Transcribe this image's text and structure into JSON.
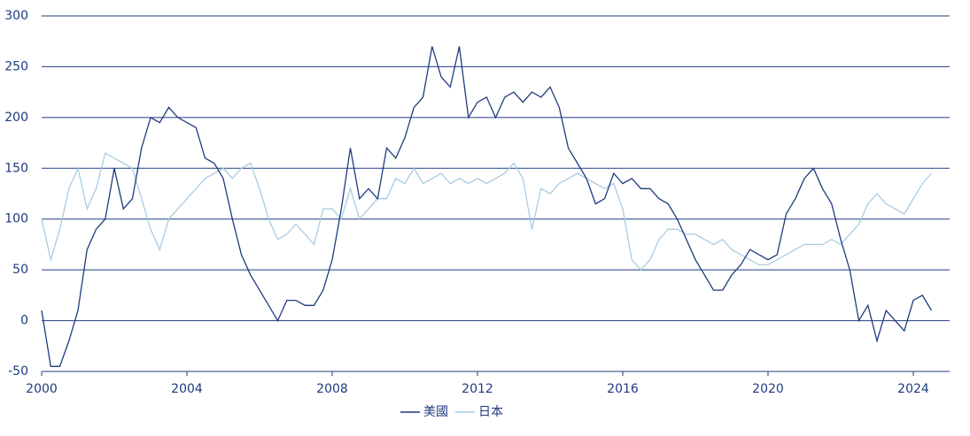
{
  "chart_data": {
    "type": "line",
    "x": [
      2000,
      2000.25,
      2000.5,
      2000.75,
      2001,
      2001.25,
      2001.5,
      2001.75,
      2002,
      2002.25,
      2002.5,
      2002.75,
      2003,
      2003.25,
      2003.5,
      2003.75,
      2004,
      2004.25,
      2004.5,
      2004.75,
      2005,
      2005.25,
      2005.5,
      2005.75,
      2006,
      2006.25,
      2006.5,
      2006.75,
      2007,
      2007.25,
      2007.5,
      2007.75,
      2008,
      2008.25,
      2008.5,
      2008.75,
      2009,
      2009.25,
      2009.5,
      2009.75,
      2010,
      2010.25,
      2010.5,
      2010.75,
      2011,
      2011.25,
      2011.5,
      2011.75,
      2012,
      2012.25,
      2012.5,
      2012.75,
      2013,
      2013.25,
      2013.5,
      2013.75,
      2014,
      2014.25,
      2014.5,
      2014.75,
      2015,
      2015.25,
      2015.5,
      2015.75,
      2016,
      2016.25,
      2016.5,
      2016.75,
      2017,
      2017.25,
      2017.5,
      2017.75,
      2018,
      2018.25,
      2018.5,
      2018.75,
      2019,
      2019.25,
      2019.5,
      2019.75,
      2020,
      2020.25,
      2020.5,
      2020.75,
      2021,
      2021.25,
      2021.5,
      2021.75,
      2022,
      2022.25,
      2022.5,
      2022.75,
      2023,
      2023.25,
      2023.5,
      2023.75,
      2024,
      2024.25,
      2024.5
    ],
    "series": [
      {
        "name": "美國",
        "color": "#1f3b7f",
        "values": [
          10,
          -45,
          -45,
          -20,
          10,
          70,
          90,
          100,
          150,
          110,
          120,
          170,
          200,
          195,
          210,
          200,
          195,
          190,
          160,
          155,
          140,
          100,
          65,
          45,
          30,
          15,
          0,
          20,
          20,
          15,
          15,
          30,
          60,
          110,
          170,
          120,
          130,
          120,
          170,
          160,
          180,
          210,
          220,
          270,
          240,
          230,
          270,
          200,
          215,
          220,
          200,
          220,
          225,
          215,
          225,
          220,
          230,
          210,
          170,
          155,
          140,
          115,
          120,
          145,
          135,
          140,
          130,
          130,
          120,
          115,
          100,
          80,
          60,
          45,
          30,
          30,
          45,
          55,
          70,
          65,
          60,
          65,
          105,
          120,
          140,
          150,
          130,
          115,
          80,
          50,
          0,
          15,
          -20,
          10,
          0,
          -10,
          20,
          25,
          10
        ]
      },
      {
        "name": "日本",
        "color": "#a9cce3",
        "values": [
          100,
          60,
          90,
          130,
          150,
          110,
          130,
          165,
          160,
          155,
          150,
          120,
          90,
          70,
          100,
          110,
          120,
          130,
          140,
          145,
          150,
          140,
          150,
          155,
          130,
          100,
          80,
          85,
          95,
          85,
          75,
          110,
          110,
          100,
          130,
          100,
          110,
          120,
          120,
          140,
          135,
          150,
          135,
          140,
          145,
          135,
          140,
          135,
          140,
          135,
          140,
          145,
          155,
          140,
          90,
          130,
          125,
          135,
          140,
          145,
          140,
          135,
          130,
          135,
          110,
          60,
          50,
          60,
          80,
          90,
          90,
          85,
          85,
          80,
          75,
          80,
          70,
          65,
          60,
          55,
          55,
          60,
          65,
          70,
          75,
          75,
          75,
          80,
          75,
          85,
          95,
          115,
          125,
          115,
          110,
          105,
          120,
          135,
          145
        ]
      }
    ],
    "xlim": [
      2000,
      2025
    ],
    "xticks": [
      2000,
      2004,
      2008,
      2012,
      2016,
      2020,
      2024
    ],
    "ylim": [
      -50,
      300
    ],
    "yticks": [
      -50,
      0,
      50,
      100,
      150,
      200,
      250,
      300
    ],
    "grid": true,
    "legend": "bottom"
  }
}
